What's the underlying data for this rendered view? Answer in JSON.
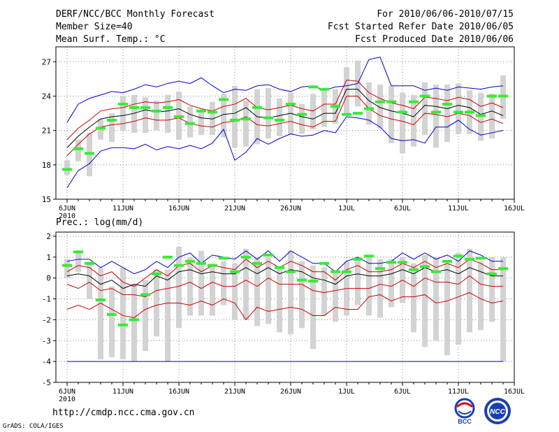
{
  "header": {
    "title": "DERF/NCC/BCC Monthly Forecast",
    "member_size": "Member Size=40",
    "variable_top": "Mean Surf. Temp.: °C",
    "period": "For 2010/06/06-2010/07/15",
    "started": "Fcst Started Refer Date 2010/06/05",
    "produced": "Fcst Produced Date 2010/06/06"
  },
  "footer": {
    "url": "http://cmdp.ncc.cma.gov.cn",
    "credit": "GrADS: COLA/IGES",
    "logo_left": "BCC",
    "logo_right": "NCC"
  },
  "colors": {
    "max": "#0000cc",
    "pct": "#cc0000",
    "mean": "#000000",
    "obs": "#33ee33",
    "box": "#d3d3d3"
  },
  "chart_data": [
    {
      "type": "line",
      "title": "Mean Surf. Temp.: °C",
      "x_tick_labels": [
        "6JUN",
        "11JUN",
        "16JUN",
        "21JUN",
        "26JUN",
        "1JUL",
        "6JUL",
        "11JUL",
        "16JUL"
      ],
      "x_sublabel": "2010",
      "y_ticks": [
        15,
        18,
        21,
        24,
        27
      ],
      "ylim": [
        15,
        28.3
      ],
      "days": 40,
      "series": [
        {
          "name": "max",
          "values": [
            21.7,
            23.3,
            23.8,
            24.1,
            24.4,
            24.3,
            24.6,
            25.0,
            24.8,
            25.1,
            25.3,
            25.1,
            25.6,
            24.9,
            24.3,
            24.6,
            24.5,
            24.9,
            25.0,
            24.6,
            24.4,
            24.8,
            24.9,
            24.5,
            24.8,
            24.9,
            25.1,
            27.2,
            27.4,
            24.9,
            24.9,
            24.9,
            24.5,
            24.7,
            24.5,
            24.8,
            24.7,
            24.6,
            24.8,
            24.9
          ]
        },
        {
          "name": "p90",
          "values": [
            20.2,
            21.2,
            21.9,
            22.7,
            22.9,
            23.0,
            23.3,
            23.5,
            23.4,
            23.5,
            23.7,
            23.2,
            22.9,
            22.7,
            23.1,
            23.3,
            23.8,
            23.0,
            22.8,
            23.0,
            23.2,
            22.9,
            22.7,
            23.3,
            23.3,
            25.4,
            25.3,
            24.3,
            23.8,
            23.4,
            23.2,
            22.9,
            23.9,
            23.8,
            23.6,
            23.9,
            23.7,
            23.1,
            23.4,
            23.0
          ]
        },
        {
          "name": "mean",
          "values": [
            19.5,
            20.5,
            21.3,
            22.0,
            22.2,
            22.3,
            22.5,
            22.8,
            22.6,
            22.7,
            22.9,
            22.4,
            22.1,
            22.0,
            22.4,
            22.5,
            23.0,
            22.2,
            22.1,
            22.3,
            22.5,
            22.2,
            22.0,
            22.5,
            22.5,
            24.6,
            24.6,
            23.6,
            23.0,
            22.7,
            22.5,
            22.2,
            23.2,
            23.1,
            22.9,
            23.2,
            23.0,
            22.4,
            22.7,
            22.3
          ]
        },
        {
          "name": "p10",
          "values": [
            18.8,
            19.8,
            20.7,
            21.3,
            21.5,
            21.6,
            21.8,
            22.1,
            21.9,
            21.9,
            22.1,
            21.6,
            21.4,
            21.3,
            21.7,
            21.8,
            22.2,
            21.5,
            21.4,
            21.6,
            21.8,
            21.5,
            21.3,
            21.8,
            21.8,
            24.0,
            24.0,
            22.9,
            22.3,
            22.0,
            21.8,
            21.5,
            22.5,
            22.4,
            22.2,
            22.5,
            22.3,
            21.7,
            22.0,
            21.6
          ]
        },
        {
          "name": "min",
          "values": [
            16.0,
            17.5,
            18.1,
            19.2,
            19.5,
            19.5,
            19.4,
            19.8,
            19.3,
            19.6,
            19.4,
            19.7,
            19.4,
            19.9,
            21.1,
            18.4,
            19.1,
            20.3,
            19.8,
            20.3,
            20.7,
            20.5,
            20.6,
            21.0,
            20.8,
            22.2,
            22.1,
            21.9,
            21.3,
            20.3,
            20.1,
            20.2,
            19.9,
            21.3,
            21.3,
            21.9,
            21.1,
            20.6,
            20.8,
            21.0
          ]
        },
        {
          "name": "box_top",
          "values": [
            18.4,
            20.2,
            20.8,
            22.0,
            22.5,
            24.0,
            24.1,
            23.9,
            23.6,
            24.1,
            24.4,
            23.1,
            22.8,
            23.5,
            24.2,
            24.9,
            23.6,
            24.6,
            24.7,
            23.8,
            24.3,
            23.3,
            24.2,
            24.6,
            24.6,
            26.5,
            27.1,
            25.2,
            25.0,
            24.9,
            24.3,
            24.1,
            25.2,
            25.0,
            25.0,
            25.1,
            24.5,
            24.3,
            24.2,
            25.8
          ]
        },
        {
          "name": "box_bottom",
          "values": [
            17.1,
            18.3,
            17.0,
            20.2,
            20.0,
            21.0,
            20.8,
            20.8,
            21.0,
            20.8,
            20.2,
            20.4,
            20.6,
            20.6,
            20.4,
            19.5,
            19.6,
            19.8,
            20.3,
            20.5,
            20.6,
            20.7,
            21.1,
            21.3,
            21.6,
            22.5,
            23.1,
            21.5,
            21.2,
            19.9,
            19.0,
            19.6,
            20.6,
            19.5,
            20.0,
            20.7,
            20.7,
            20.1,
            20.3,
            22.0
          ]
        },
        {
          "name": "observed",
          "values": [
            17.6,
            19.4,
            19.0,
            21.2,
            21.9,
            23.3,
            23.0,
            23.0,
            22.7,
            23.0,
            22.2,
            21.6,
            22.7,
            22.6,
            23.7,
            21.9,
            22.0,
            23.0,
            22.1,
            21.9,
            23.3,
            22.4,
            24.8,
            24.6,
            23.1,
            22.4,
            22.5,
            22.9,
            23.5,
            23.5,
            22.6,
            23.5,
            24.0,
            22.6,
            23.3,
            22.6,
            22.6,
            22.3,
            24.0,
            24.0
          ]
        }
      ]
    },
    {
      "type": "line",
      "title": "Prec.: log(mm/d)",
      "x_tick_labels": [
        "6JUN",
        "11JUN",
        "16JUN",
        "21JUN",
        "26JUN",
        "1JUL",
        "6JUL",
        "11JUL",
        "16JUL"
      ],
      "x_sublabel": "2010",
      "y_ticks": [
        -5,
        -4,
        -3,
        -2,
        -1,
        0,
        1,
        2
      ],
      "ylim": [
        -5,
        2.2
      ],
      "days": 40,
      "series": [
        {
          "name": "max",
          "values": [
            0.8,
            0.9,
            0.9,
            0.5,
            0.8,
            0.5,
            0.2,
            0.4,
            0.8,
            0.5,
            1.0,
            1.2,
            0.7,
            1.1,
            1.0,
            0.9,
            1.3,
            0.9,
            1.3,
            0.8,
            1.3,
            1.0,
            0.7,
            0.7,
            0.3,
            0.8,
            1.0,
            0.7,
            0.7,
            0.8,
            1.2,
            0.9,
            1.2,
            0.9,
            1.1,
            0.8,
            1.3,
            1.1,
            0.8,
            0.8
          ]
        },
        {
          "name": "p90",
          "values": [
            0.3,
            0.6,
            0.5,
            0.1,
            0.3,
            -0.2,
            -0.4,
            0.0,
            0.4,
            0.1,
            0.6,
            0.7,
            0.3,
            0.6,
            0.5,
            0.4,
            0.9,
            0.5,
            0.8,
            0.5,
            0.8,
            0.6,
            0.3,
            0.3,
            -0.1,
            0.4,
            0.6,
            0.3,
            0.3,
            0.4,
            0.7,
            0.5,
            0.8,
            0.5,
            0.7,
            0.5,
            0.9,
            0.7,
            0.4,
            0.4
          ]
        },
        {
          "name": "mean",
          "values": [
            0.1,
            0.2,
            0.1,
            -0.3,
            -0.1,
            -0.5,
            -0.3,
            -0.4,
            0.1,
            -0.1,
            0.3,
            0.4,
            0.2,
            0.3,
            0.2,
            0.2,
            0.5,
            0.2,
            0.5,
            0.2,
            0.4,
            0.3,
            0.0,
            -0.1,
            -0.3,
            0.1,
            0.2,
            0.1,
            0.1,
            0.2,
            0.4,
            0.2,
            0.5,
            0.3,
            0.4,
            0.2,
            0.5,
            0.3,
            0.1,
            0.1
          ]
        },
        {
          "name": "p10",
          "values": [
            -0.3,
            -0.5,
            -0.2,
            -0.6,
            -0.5,
            -0.8,
            -0.8,
            -0.9,
            -0.6,
            -0.5,
            -0.4,
            -0.2,
            -0.5,
            -0.2,
            -0.4,
            -0.4,
            -0.1,
            -0.4,
            0.0,
            -0.3,
            -0.3,
            -0.3,
            -0.6,
            -0.7,
            -0.6,
            -0.5,
            -0.5,
            -0.5,
            -0.3,
            -0.4,
            -0.1,
            -0.4,
            0.0,
            -0.2,
            -0.2,
            -0.3,
            0.1,
            -0.3,
            -0.4,
            -0.4
          ]
        },
        {
          "name": "p_low",
          "values": [
            -1.5,
            -1.3,
            -1.5,
            -1.2,
            -1.5,
            -1.8,
            -1.9,
            -1.5,
            -1.3,
            -1.2,
            -1.2,
            -1.3,
            -1.1,
            -1.3,
            -1.0,
            -1.2,
            -2.0,
            -1.4,
            -1.6,
            -1.5,
            -1.4,
            -1.5,
            -1.8,
            -1.8,
            -1.4,
            -1.5,
            -1.5,
            -0.9,
            -0.8,
            -1.1,
            -0.9,
            -0.9,
            -0.8,
            -1.2,
            -1.1,
            -0.9,
            -0.7,
            -1.0,
            -1.2,
            -1.1
          ]
        },
        {
          "name": "min",
          "values": [
            -4.0,
            -4.0,
            -4.0,
            -4.0,
            -4.0,
            -4.0,
            -4.0,
            -4.0,
            -4.0,
            -4.0,
            -4.0,
            -4.0,
            -4.0,
            -4.0,
            -4.0,
            -4.0,
            -4.0,
            -4.0,
            -4.0,
            -4.0,
            -4.0,
            -4.0,
            -4.0,
            -4.0,
            -4.0,
            -4.0,
            -4.0,
            -4.0,
            -4.0,
            -4.0,
            -4.0,
            -4.0,
            -4.0,
            -4.0,
            -4.0,
            -4.0,
            -4.0,
            -4.0,
            -4.0,
            -4.0
          ]
        },
        {
          "name": "box_top",
          "values": [
            0.9,
            1.2,
            0.7,
            0.5,
            -0.4,
            0.5,
            -0.3,
            -0.1,
            0.4,
            0.4,
            1.5,
            1.0,
            1.3,
            0.7,
            0.8,
            0.7,
            1.4,
            1.0,
            1.0,
            0.5,
            1.3,
            0.8,
            0.6,
            0.5,
            0.3,
            0.8,
            1.0,
            1.1,
            0.9,
            0.9,
            1.0,
            0.7,
            1.1,
            1.0,
            0.7,
            1.2,
            1.4,
            0.8,
            1.0,
            1.0
          ]
        },
        {
          "name": "box_bottom",
          "values": [
            0.0,
            0.3,
            -1.0,
            -3.9,
            -3.8,
            -3.9,
            -4.0,
            -3.5,
            -2.8,
            -4.0,
            -2.4,
            -1.8,
            -1.8,
            -1.8,
            -1.3,
            -2.0,
            -2.0,
            -2.3,
            -2.2,
            -2.6,
            -2.7,
            -2.4,
            -3.4,
            -1.8,
            -2.1,
            -1.8,
            -1.3,
            -1.8,
            -1.9,
            -1.4,
            -1.2,
            -2.6,
            -3.3,
            -3.0,
            -3.7,
            -3.2,
            -2.6,
            -2.5,
            -2.1,
            -4.0
          ]
        },
        {
          "name": "observed",
          "values": [
            0.6,
            1.25,
            0.7,
            -1.05,
            -1.75,
            -2.25,
            -2.0,
            -0.8,
            0.2,
            1.0,
            0.6,
            0.8,
            0.7,
            0.6,
            0.95,
            0.3,
            1.0,
            0.7,
            1.1,
            0.5,
            0.3,
            -0.1,
            -0.15,
            0.7,
            0.3,
            0.3,
            0.9,
            1.05,
            0.45,
            0.75,
            0.75,
            0.4,
            0.55,
            0.3,
            0.8,
            1.05,
            0.9,
            0.95,
            0.2,
            0.45
          ]
        }
      ]
    }
  ]
}
